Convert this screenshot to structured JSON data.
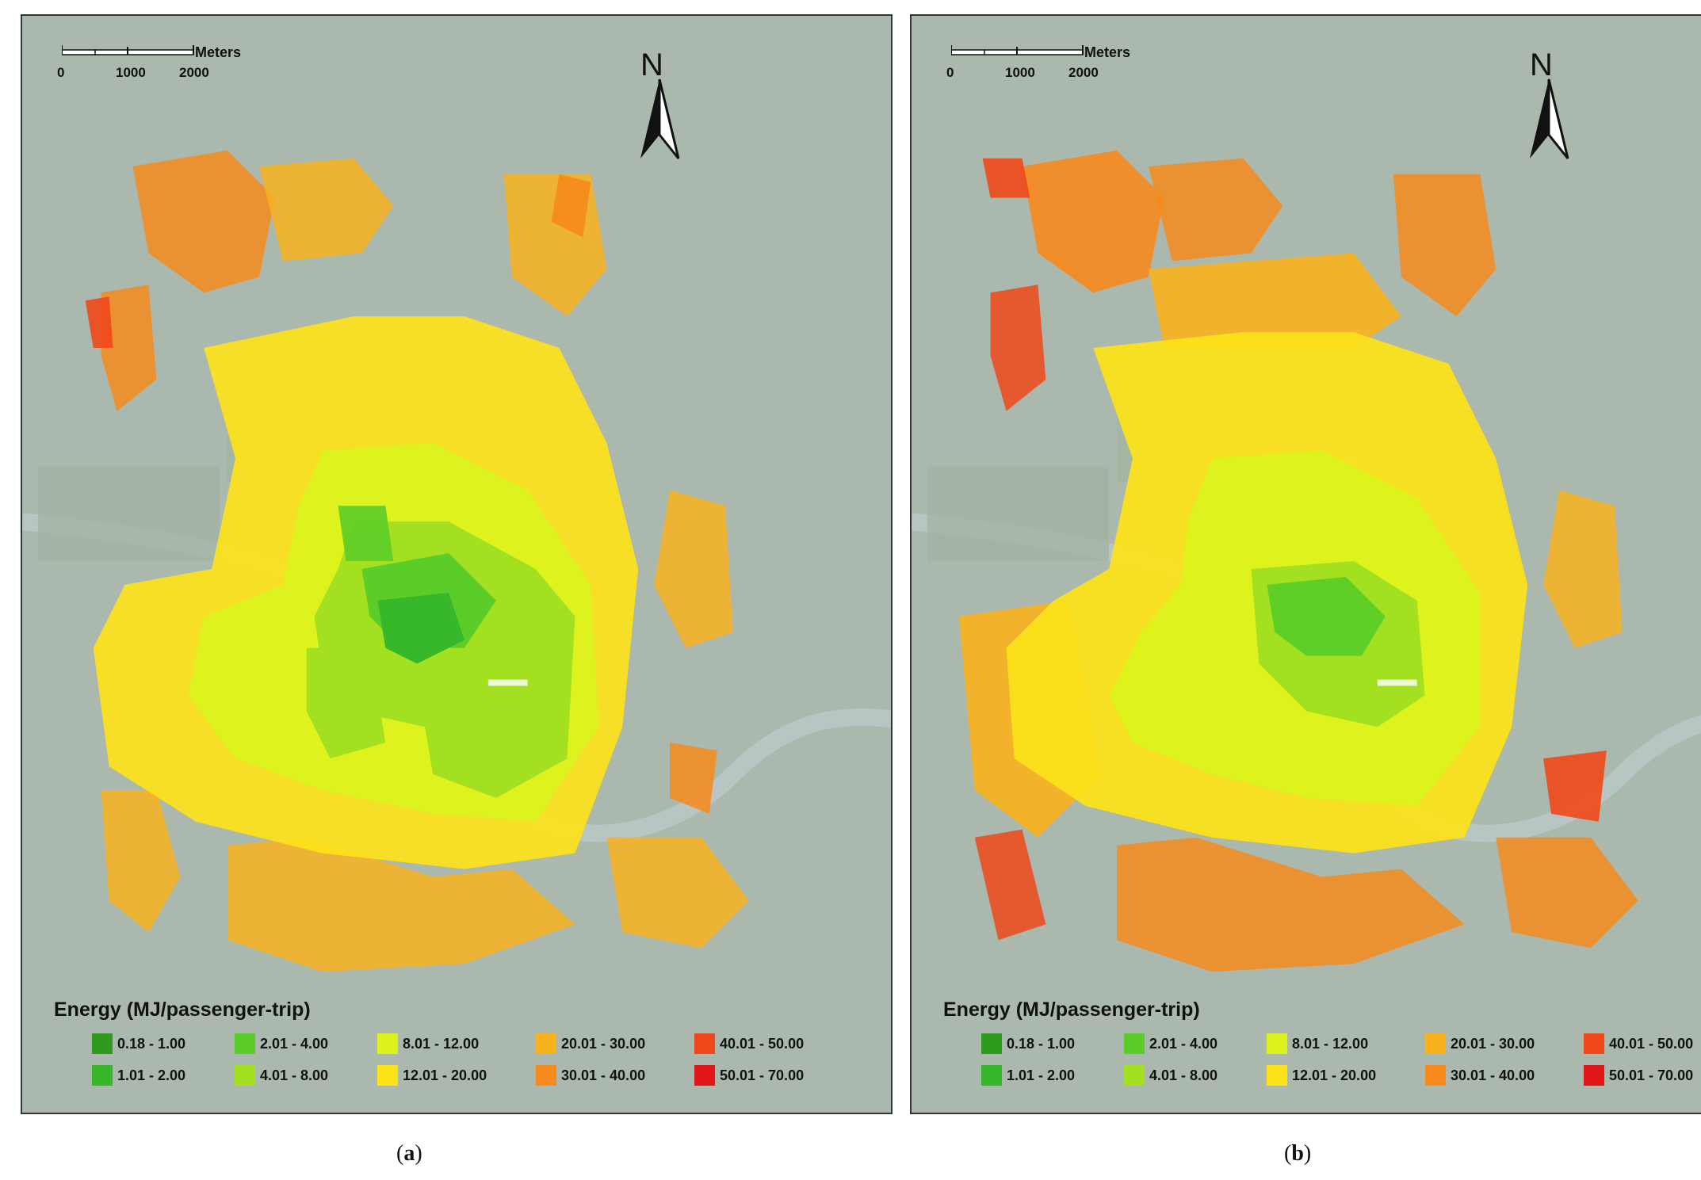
{
  "scale": {
    "ticks": [
      "0",
      "1000",
      "2000"
    ],
    "unit": "Meters"
  },
  "north_label": "N",
  "legend": {
    "title": "Energy (MJ/passenger-trip)",
    "items": [
      {
        "label": "0.18 - 1.00",
        "color": "#2e9a1d"
      },
      {
        "label": "1.01 - 2.00",
        "color": "#37b82a"
      },
      {
        "label": "2.01 - 4.00",
        "color": "#5ccd28"
      },
      {
        "label": "4.01 - 8.00",
        "color": "#a2e020"
      },
      {
        "label": "8.01 - 12.00",
        "color": "#dcf21c"
      },
      {
        "label": "12.01 - 20.00",
        "color": "#fde21a"
      },
      {
        "label": "20.01 - 30.00",
        "color": "#f9b21e"
      },
      {
        "label": "30.01 - 40.00",
        "color": "#f68a1c"
      },
      {
        "label": "40.01 - 50.00",
        "color": "#f0481a"
      },
      {
        "label": "50.01 - 70.00",
        "color": "#e21717"
      }
    ]
  },
  "captions": {
    "a": {
      "open": "(",
      "letter": "a",
      "close": ")"
    },
    "b": {
      "open": "(",
      "letter": "b",
      "close": ")"
    }
  }
}
